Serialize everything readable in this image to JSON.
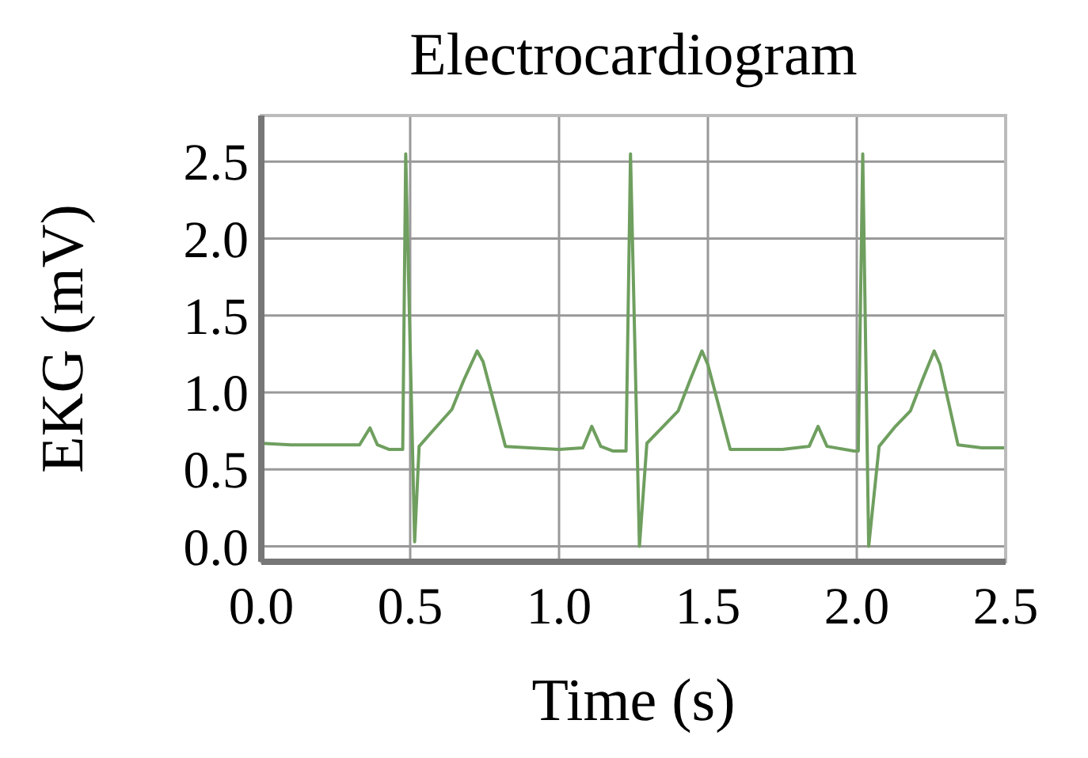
{
  "chart_data": {
    "type": "line",
    "title": "Electrocardiogram",
    "xlabel": "Time (s)",
    "ylabel": "EKG (mV)",
    "x": [
      0,
      0.1,
      0.2,
      0.33,
      0.365,
      0.39,
      0.43,
      0.475,
      0.485,
      0.515,
      0.53,
      0.58,
      0.64,
      0.68,
      0.725,
      0.745,
      0.82,
      0.9,
      1.0,
      1.08,
      1.11,
      1.14,
      1.18,
      1.225,
      1.24,
      1.27,
      1.295,
      1.35,
      1.4,
      1.44,
      1.48,
      1.5,
      1.575,
      1.65,
      1.75,
      1.84,
      1.87,
      1.9,
      1.99,
      2.005,
      2.02,
      2.04,
      2.075,
      2.13,
      2.18,
      2.22,
      2.26,
      2.28,
      2.34,
      2.42,
      2.5
    ],
    "series": [
      {
        "color": "#6f9f5f",
        "values": [
          0.67,
          0.66,
          0.66,
          0.66,
          0.77,
          0.66,
          0.63,
          0.63,
          2.55,
          0.03,
          0.65,
          0.76,
          0.89,
          1.08,
          1.27,
          1.2,
          0.65,
          0.64,
          0.63,
          0.64,
          0.78,
          0.65,
          0.62,
          0.62,
          2.55,
          0.0,
          0.67,
          0.78,
          0.88,
          1.08,
          1.27,
          1.18,
          0.63,
          0.63,
          0.63,
          0.65,
          0.78,
          0.65,
          0.62,
          0.62,
          2.55,
          0.0,
          0.65,
          0.78,
          0.88,
          1.08,
          1.27,
          1.18,
          0.66,
          0.64,
          0.64
        ]
      }
    ],
    "xlim": [
      0,
      2.5
    ],
    "ylim": [
      -0.1,
      2.8
    ],
    "xticks": [
      {
        "value": 0,
        "label": "0.0"
      },
      0.5,
      {
        "value": 1,
        "label": "1.0"
      },
      1.5,
      {
        "value": 2,
        "label": "2.0"
      },
      2.5
    ],
    "yticks": [
      {
        "value": 0,
        "label": "0.0"
      },
      0.5,
      {
        "value": 1,
        "label": "1.0"
      },
      1.5,
      {
        "value": 2,
        "label": "2.0"
      },
      2.5
    ],
    "grid": true,
    "line_style": "solid",
    "marker": "none"
  }
}
